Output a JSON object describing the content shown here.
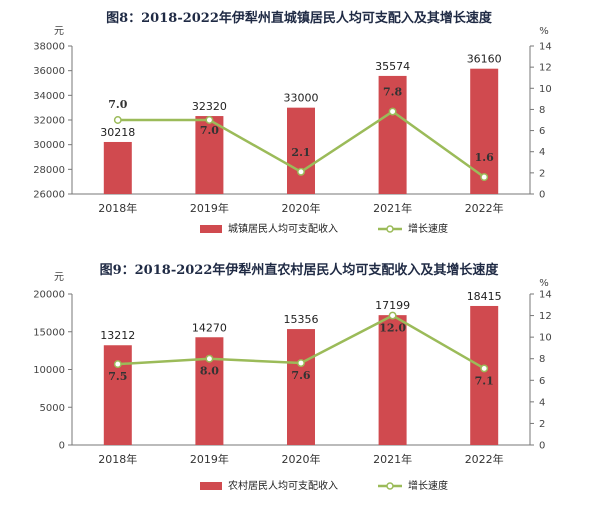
{
  "charts": [
    {
      "title": "图8：2018-2022年伊犁州直城镇居民人均可支配入及其增长速度",
      "left_unit": "元",
      "right_unit": "%",
      "legend_bar": "城镇居民人均可支配收入",
      "legend_line": "增长速度"
    },
    {
      "title": "图9：2018-2022年伊犁州直农村居民人均可支配收入及其增长速度",
      "left_unit": "元",
      "right_unit": "%",
      "legend_bar": "农村居民人均可支配收入",
      "legend_line": "增长速度"
    }
  ],
  "chart_data": [
    {
      "type": "bar",
      "categories": [
        "2018年",
        "2019年",
        "2020年",
        "2021年",
        "2022年"
      ],
      "series": [
        {
          "name": "城镇居民人均可支配收入",
          "type": "bar",
          "axis": "left",
          "values": [
            30218,
            32320,
            33000,
            35574,
            36160
          ]
        },
        {
          "name": "增长速度",
          "type": "line",
          "axis": "right",
          "values": [
            7.0,
            7.0,
            2.1,
            7.8,
            1.6
          ]
        }
      ],
      "left_ylim": [
        26000,
        38000
      ],
      "left_ticks": [
        26000,
        28000,
        30000,
        32000,
        34000,
        36000,
        38000
      ],
      "right_ylim": [
        0,
        14
      ],
      "right_ticks": [
        0,
        2,
        4,
        6,
        8,
        10,
        12,
        14
      ],
      "left_ylabel": "元",
      "right_ylabel": "%",
      "bar_labels": [
        "30218",
        "32320",
        "33000",
        "35574",
        "36160"
      ],
      "rate_labels": [
        "7.0",
        "7.0",
        "2.1",
        "7.8",
        "1.6"
      ],
      "legend": "bottom",
      "grid": false,
      "colors": {
        "bar": "#d04a4f",
        "line": "#9bbb59"
      }
    },
    {
      "type": "bar",
      "categories": [
        "2018年",
        "2019年",
        "2020年",
        "2021年",
        "2022年"
      ],
      "series": [
        {
          "name": "农村居民人均可支配收入",
          "type": "bar",
          "axis": "left",
          "values": [
            13212,
            14270,
            15356,
            17199,
            18415
          ]
        },
        {
          "name": "增长速度",
          "type": "line",
          "axis": "right",
          "values": [
            7.5,
            8.0,
            7.6,
            12.0,
            7.1
          ]
        }
      ],
      "left_ylim": [
        0,
        20000
      ],
      "left_ticks": [
        0,
        5000,
        10000,
        15000,
        20000
      ],
      "right_ylim": [
        0,
        14
      ],
      "right_ticks": [
        0,
        2,
        4,
        6,
        8,
        10,
        12,
        14
      ],
      "left_ylabel": "元",
      "right_ylabel": "%",
      "bar_labels": [
        "13212",
        "14270",
        "15356",
        "17199",
        "18415"
      ],
      "rate_labels": [
        "7.5",
        "8.0",
        "7.6",
        "12.0",
        "7.1"
      ],
      "legend": "bottom",
      "grid": false,
      "colors": {
        "bar": "#d04a4f",
        "line": "#9bbb59"
      }
    }
  ]
}
